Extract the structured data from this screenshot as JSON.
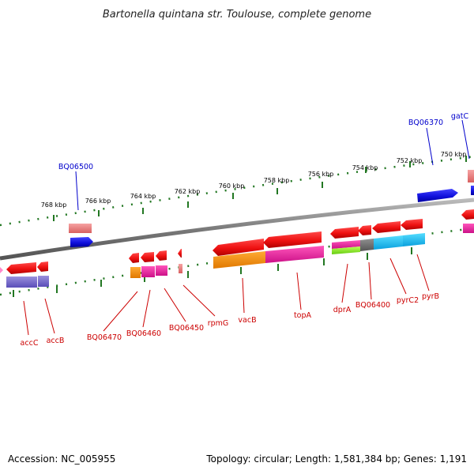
{
  "title": "Bartonella quintana str. Toulouse, complete genome",
  "footer": {
    "accession": "Accession: NC_005955",
    "summary": "Topology: circular; Length: 1,581,384 bp; Genes: 1,191"
  },
  "colors": {
    "forward_gene": "#ee1111",
    "top_strand_blue": "#1111dd",
    "label_top": "#0000cc",
    "label_bottom": "#cc0000",
    "tick": "#227722",
    "backbone": "#7a7a7a"
  },
  "scale": {
    "unit": "kbp",
    "ticks": [
      "750 kbp",
      "752 kbp",
      "754 kbp",
      "756 kbp",
      "758 kbp",
      "760 kbp",
      "762 kbp",
      "764 kbp",
      "766 kbp",
      "768 kbp"
    ]
  },
  "top_labels": [
    "gatC",
    "BQ06370",
    "BQ06500"
  ],
  "bottom_labels": [
    "accC",
    "accB",
    "BQ06470",
    "BQ06460",
    "BQ06450",
    "rpmG",
    "vacB",
    "topA",
    "dprA",
    "BQ06400",
    "pyrC2",
    "pyrB"
  ]
}
